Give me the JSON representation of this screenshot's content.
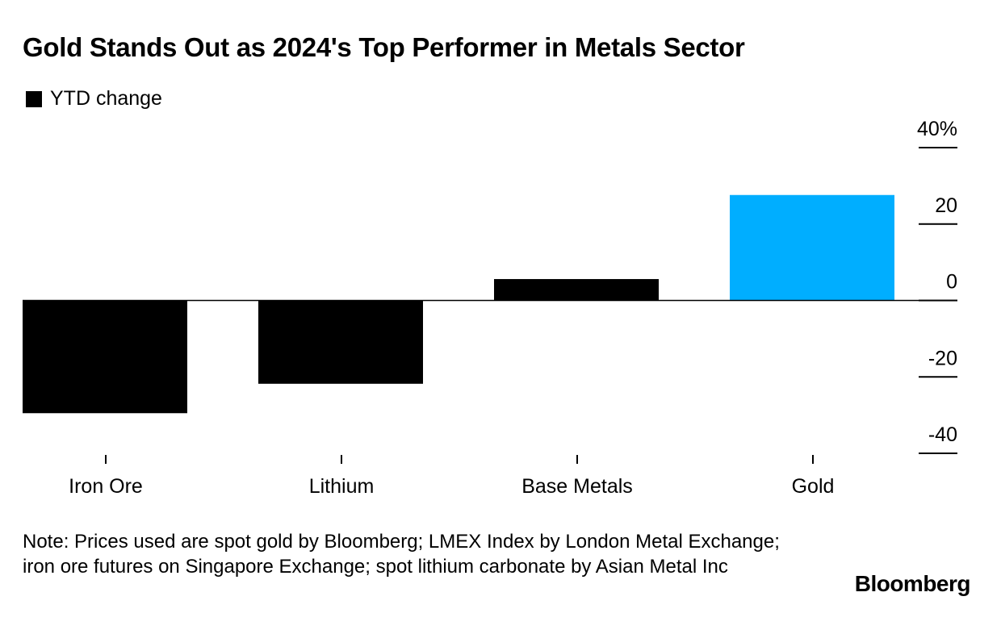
{
  "title": "Gold Stands Out as 2024's Top Performer in Metals Sector",
  "legend": {
    "label": "YTD change"
  },
  "note": "Note: Prices used are spot gold by Bloomberg; LMEX Index by London Metal Exchange; iron ore futures on Singapore Exchange; spot lithium carbonate by Asian Metal Inc",
  "brand": "Bloomberg",
  "colors": {
    "default_bar": "#000000",
    "highlight_bar": "#00aeff"
  },
  "chart_data": {
    "type": "bar",
    "title": "Gold Stands Out as 2024's Top Performer in Metals Sector",
    "categories": [
      "Iron Ore",
      "Lithium",
      "Base Metals",
      "Gold"
    ],
    "series": [
      {
        "name": "YTD change",
        "values": [
          -29.5,
          -21.8,
          5.6,
          27.6
        ]
      }
    ],
    "highlight": "Gold",
    "ylim": [
      -40,
      40
    ],
    "yticks": [
      40,
      20,
      0,
      -20,
      -40
    ],
    "ytick_labels": [
      "40%",
      "20",
      "0",
      "-20",
      "-40"
    ],
    "xlabel": "",
    "ylabel": "",
    "legend_position": "top-left"
  }
}
